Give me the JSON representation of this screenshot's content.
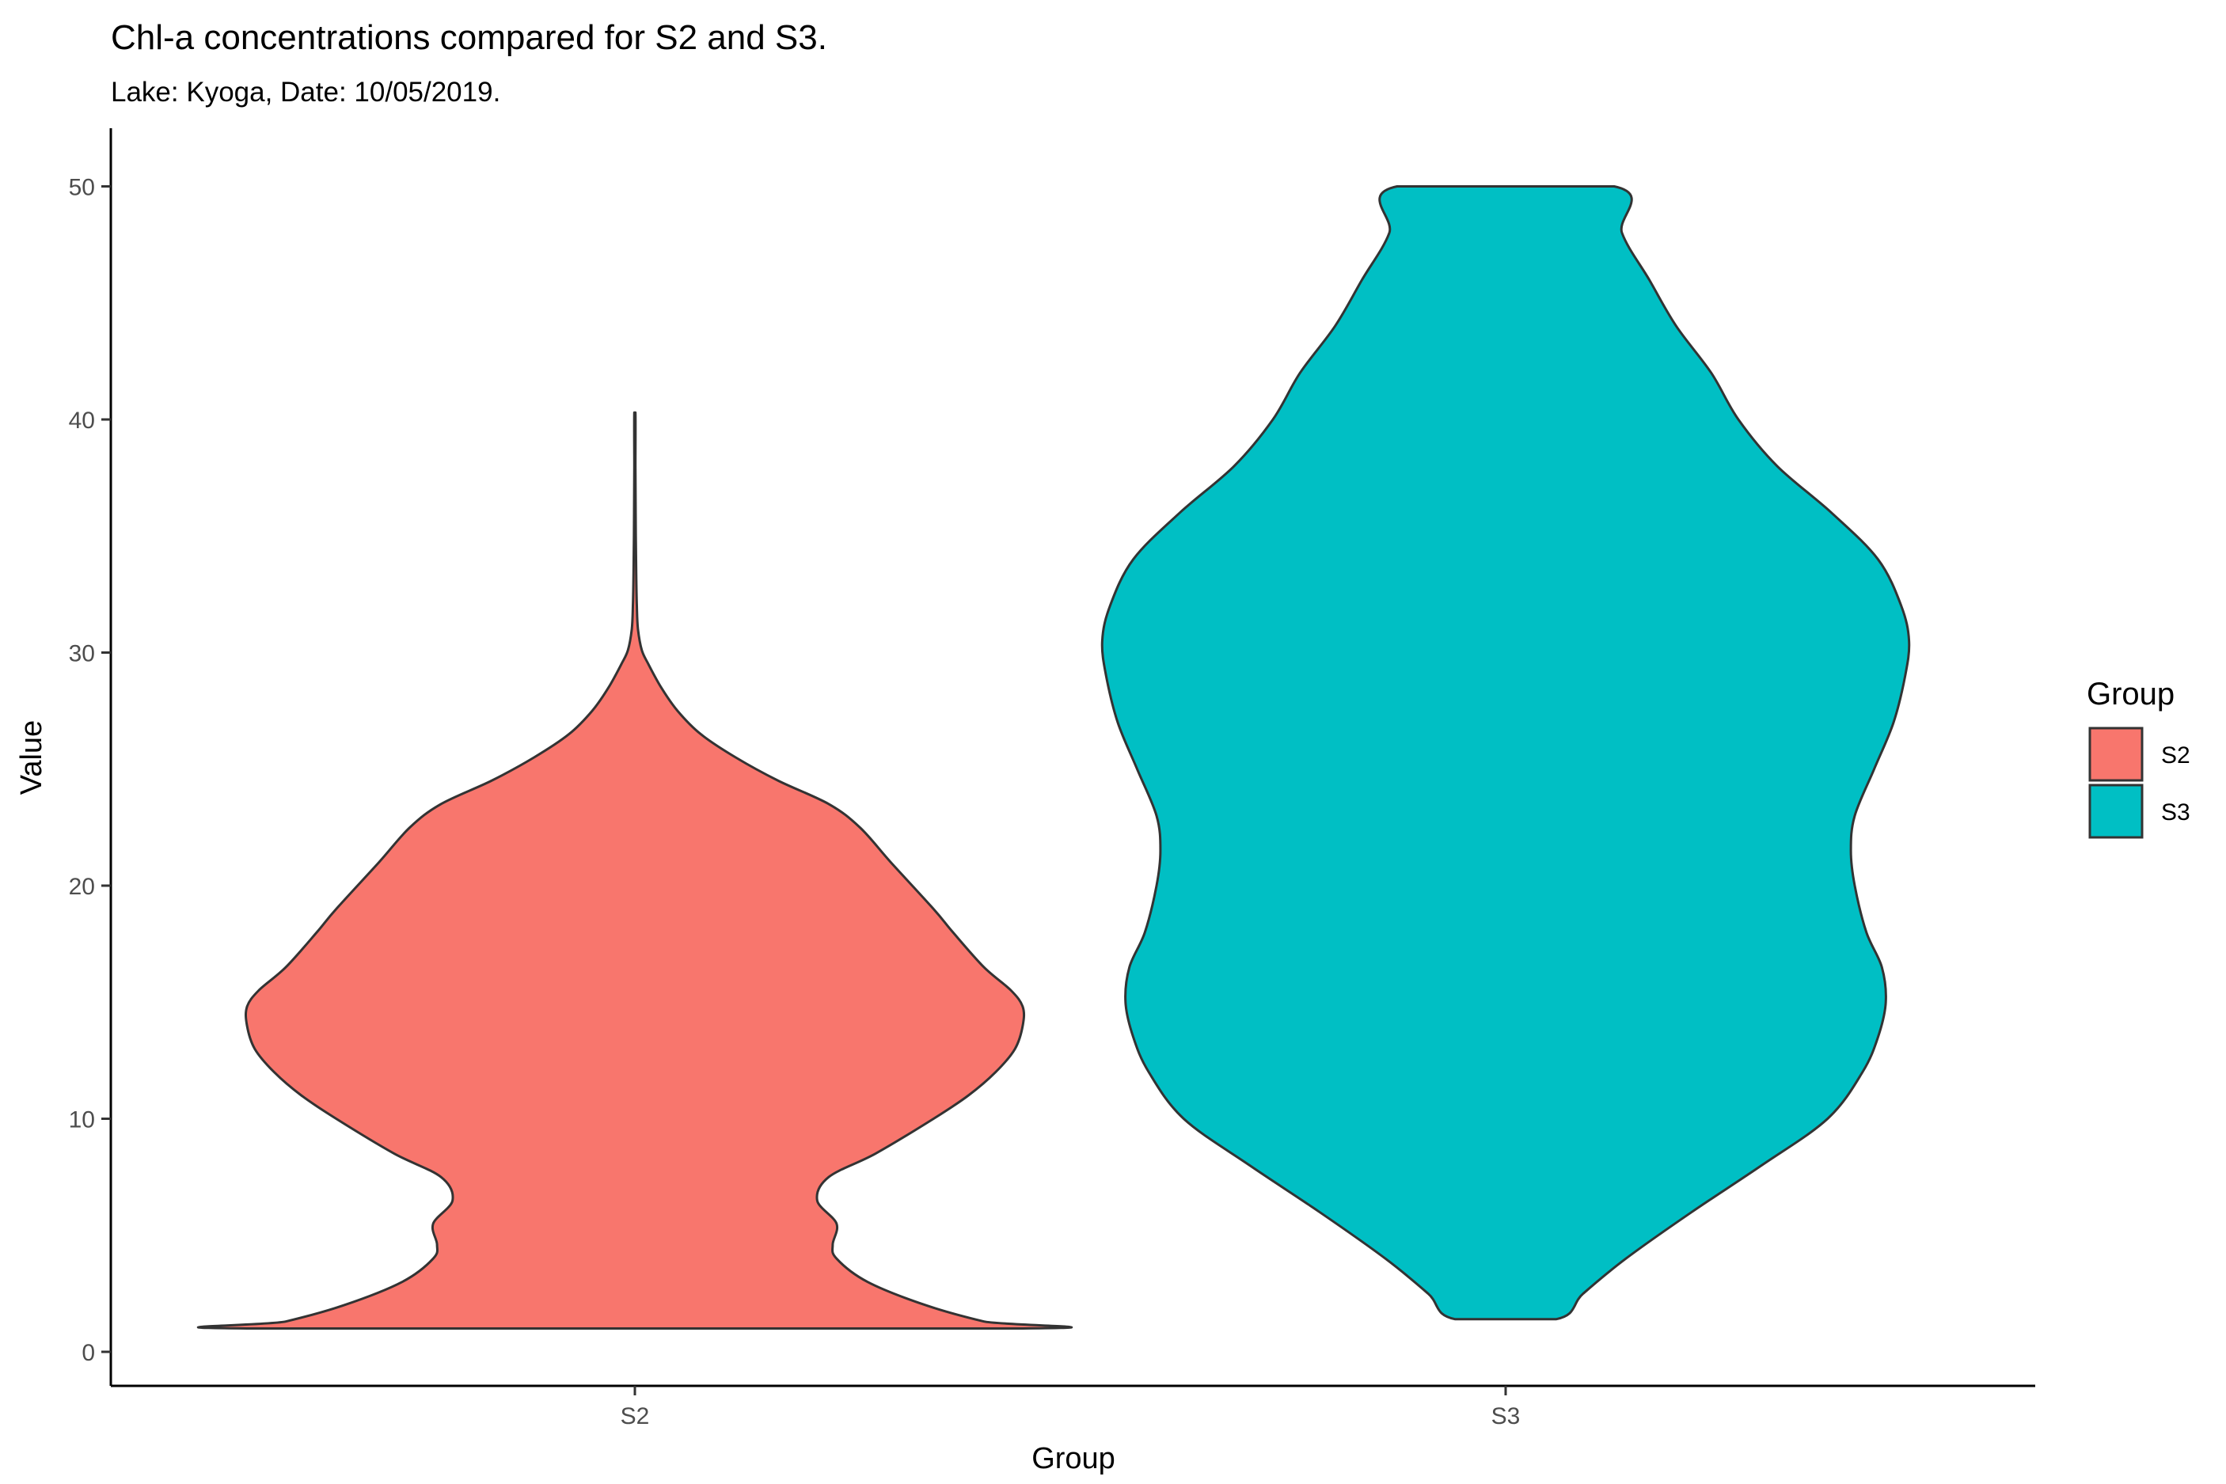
{
  "chart_data": {
    "type": "violin",
    "title": "Chl-a concentrations compared for S2 and S3.",
    "subtitle": "Lake: Kyoga, Date: 10/05/2019.",
    "xlabel": "Group",
    "ylabel": "Value",
    "ylim": [
      -1.2,
      52.5
    ],
    "yticks": [
      0,
      10,
      20,
      30,
      40,
      50
    ],
    "categories": [
      "S2",
      "S3"
    ],
    "grid": false,
    "legend": {
      "title": "Group",
      "position": "right"
    },
    "series": [
      {
        "name": "S2",
        "color": "#F8766D",
        "range": [
          1,
          40.3
        ],
        "density_profile": [
          [
            1,
            1.0
          ],
          [
            1.3,
            0.9
          ],
          [
            2,
            0.75
          ],
          [
            3,
            0.6
          ],
          [
            4,
            0.52
          ],
          [
            4.6,
            0.51
          ],
          [
            5.5,
            0.52
          ],
          [
            6.5,
            0.47
          ],
          [
            7.5,
            0.5
          ],
          [
            8.5,
            0.62
          ],
          [
            10,
            0.77
          ],
          [
            11,
            0.86
          ],
          [
            12,
            0.93
          ],
          [
            13,
            0.98
          ],
          [
            14,
            1.0
          ],
          [
            14.8,
            1.0
          ],
          [
            15.5,
            0.97
          ],
          [
            16.5,
            0.9
          ],
          [
            18,
            0.82
          ],
          [
            19,
            0.77
          ],
          [
            21,
            0.66
          ],
          [
            22.5,
            0.58
          ],
          [
            23.5,
            0.5
          ],
          [
            24.5,
            0.37
          ],
          [
            25.5,
            0.26
          ],
          [
            26.5,
            0.17
          ],
          [
            27.5,
            0.11
          ],
          [
            28.5,
            0.068
          ],
          [
            29.5,
            0.035
          ],
          [
            30.1,
            0.018
          ],
          [
            31,
            0.008
          ],
          [
            32,
            0.005
          ],
          [
            34,
            0.003
          ],
          [
            36,
            0.002
          ],
          [
            38,
            0.0015
          ],
          [
            40.3,
            0.0015
          ]
        ]
      },
      {
        "name": "S3",
        "color": "#00BFC4",
        "range": [
          1.4,
          50
        ],
        "density_profile": [
          [
            1.4,
            0.13
          ],
          [
            2.5,
            0.2
          ],
          [
            4,
            0.31
          ],
          [
            6,
            0.48
          ],
          [
            8,
            0.66
          ],
          [
            10,
            0.83
          ],
          [
            12,
            0.92
          ],
          [
            13.5,
            0.96
          ],
          [
            15,
            0.98
          ],
          [
            16.5,
            0.97
          ],
          [
            18,
            0.93
          ],
          [
            20,
            0.9
          ],
          [
            21.5,
            0.89
          ],
          [
            23,
            0.9
          ],
          [
            25,
            0.95
          ],
          [
            27,
            1.0
          ],
          [
            29,
            1.03
          ],
          [
            30.5,
            1.04
          ],
          [
            32,
            1.02
          ],
          [
            34,
            0.96
          ],
          [
            36,
            0.84
          ],
          [
            38,
            0.7
          ],
          [
            40,
            0.6
          ],
          [
            42,
            0.53
          ],
          [
            44,
            0.44
          ],
          [
            46,
            0.37
          ],
          [
            48,
            0.3
          ],
          [
            50,
            0.28
          ]
        ]
      }
    ]
  }
}
